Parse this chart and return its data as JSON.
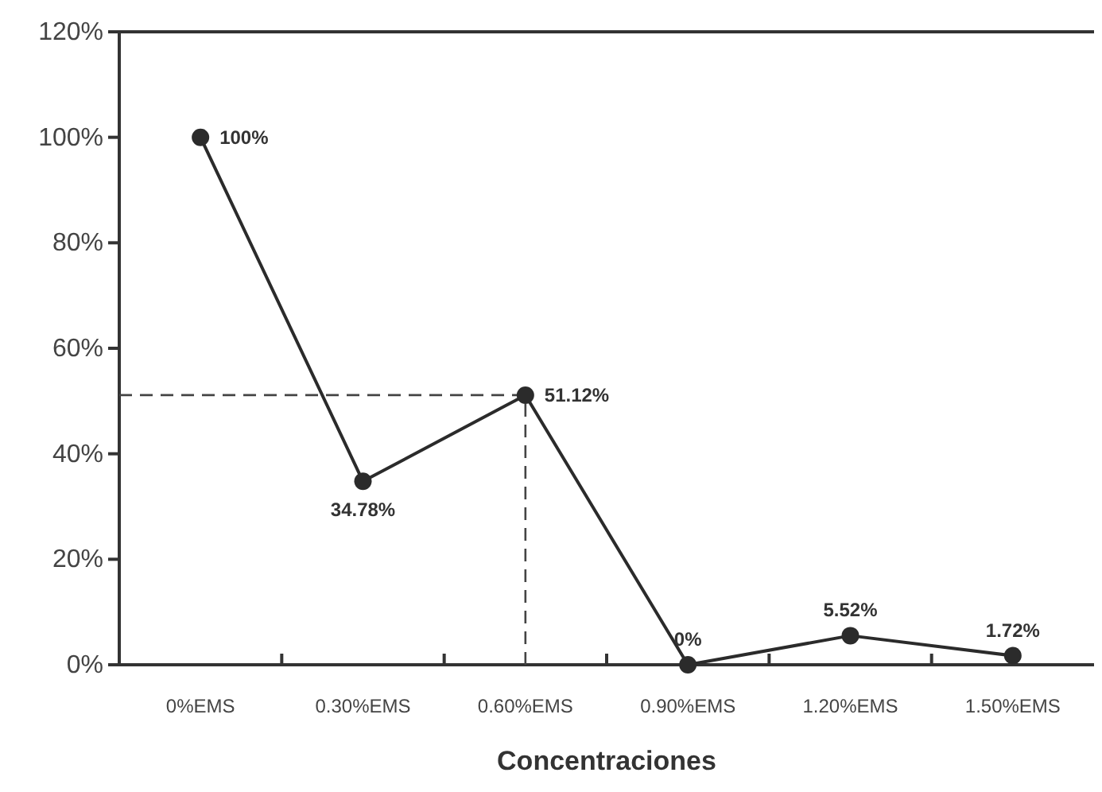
{
  "chart_data": {
    "type": "line",
    "xlabel": "Concentraciones",
    "categories": [
      "0%EMS",
      "0.30%EMS",
      "0.60%EMS",
      "0.90%EMS",
      "1.20%EMS",
      "1.50%EMS"
    ],
    "series": [
      {
        "color": "#2b2b2b",
        "values": [
          100,
          34.78,
          51.12,
          0,
          5.52,
          1.72
        ],
        "value_labels": [
          "100%",
          "34.78%",
          "51.12%",
          "0%",
          "5.52%",
          "1.72%"
        ]
      }
    ],
    "ylim": [
      0,
      120
    ],
    "yticks": [
      {
        "value": 0,
        "label": "0%"
      },
      {
        "value": 20,
        "label": "20%"
      },
      {
        "value": 40,
        "label": "40%"
      },
      {
        "value": 60,
        "label": "60%"
      },
      {
        "value": 80,
        "label": "80%"
      },
      {
        "value": 100,
        "label": "100%"
      },
      {
        "value": 120,
        "label": "120%"
      }
    ],
    "marker": "circle",
    "line_style": "solid",
    "grid": false,
    "ref_lines": [
      {
        "axis": "y",
        "value": 51.12,
        "line_style": "dashed",
        "color": "#444444"
      },
      {
        "axis": "x",
        "value": "0.60%EMS",
        "line_style": "dashed",
        "color": "#444444"
      }
    ]
  }
}
